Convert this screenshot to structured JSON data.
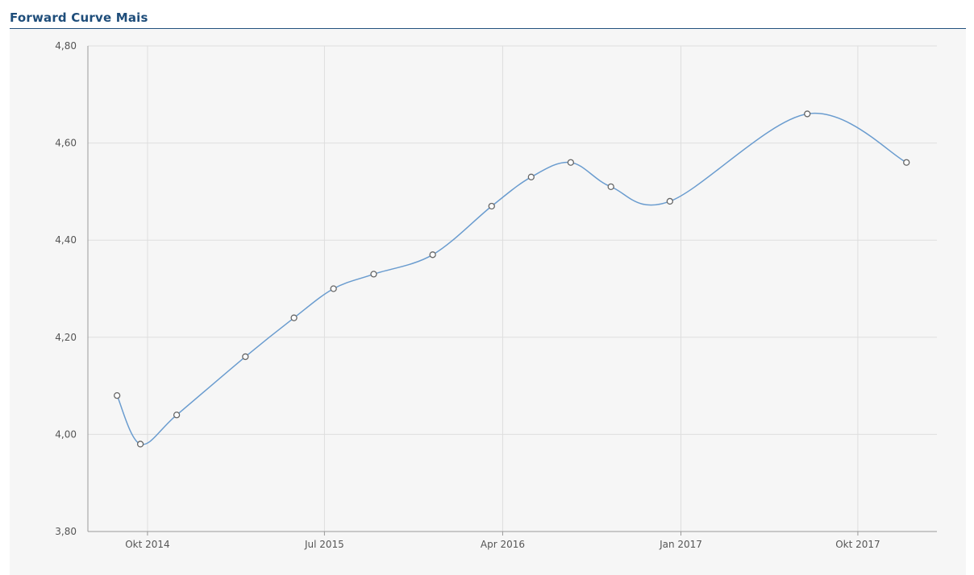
{
  "chart_data": {
    "type": "line",
    "title": "Forward Curve Mais",
    "xlabel": "",
    "ylabel": "",
    "ylim": [
      3.8,
      4.8
    ],
    "y_ticks": [
      "3,80",
      "4,00",
      "4,20",
      "4,40",
      "4,60",
      "4,80"
    ],
    "x_ticks": [
      "Okt 2014",
      "Jul 2015",
      "Apr 2016",
      "Jan 2017",
      "Okt 2017"
    ],
    "grid": true,
    "legend": "none",
    "series": [
      {
        "color": "#6a9ccf",
        "points": [
          {
            "x": "2014-08-15",
            "y": 4.08
          },
          {
            "x": "2014-09-20",
            "y": 3.98
          },
          {
            "x": "2014-11-15",
            "y": 4.04
          },
          {
            "x": "2015-03-01",
            "y": 4.16
          },
          {
            "x": "2015-05-15",
            "y": 4.24
          },
          {
            "x": "2015-07-15",
            "y": 4.3
          },
          {
            "x": "2015-09-15",
            "y": 4.33
          },
          {
            "x": "2015-12-15",
            "y": 4.37
          },
          {
            "x": "2016-03-15",
            "y": 4.47
          },
          {
            "x": "2016-05-15",
            "y": 4.53
          },
          {
            "x": "2016-07-15",
            "y": 4.56
          },
          {
            "x": "2016-09-15",
            "y": 4.51
          },
          {
            "x": "2016-12-15",
            "y": 4.48
          },
          {
            "x": "2017-07-15",
            "y": 4.66
          },
          {
            "x": "2017-12-15",
            "y": 4.56
          }
        ]
      }
    ]
  }
}
